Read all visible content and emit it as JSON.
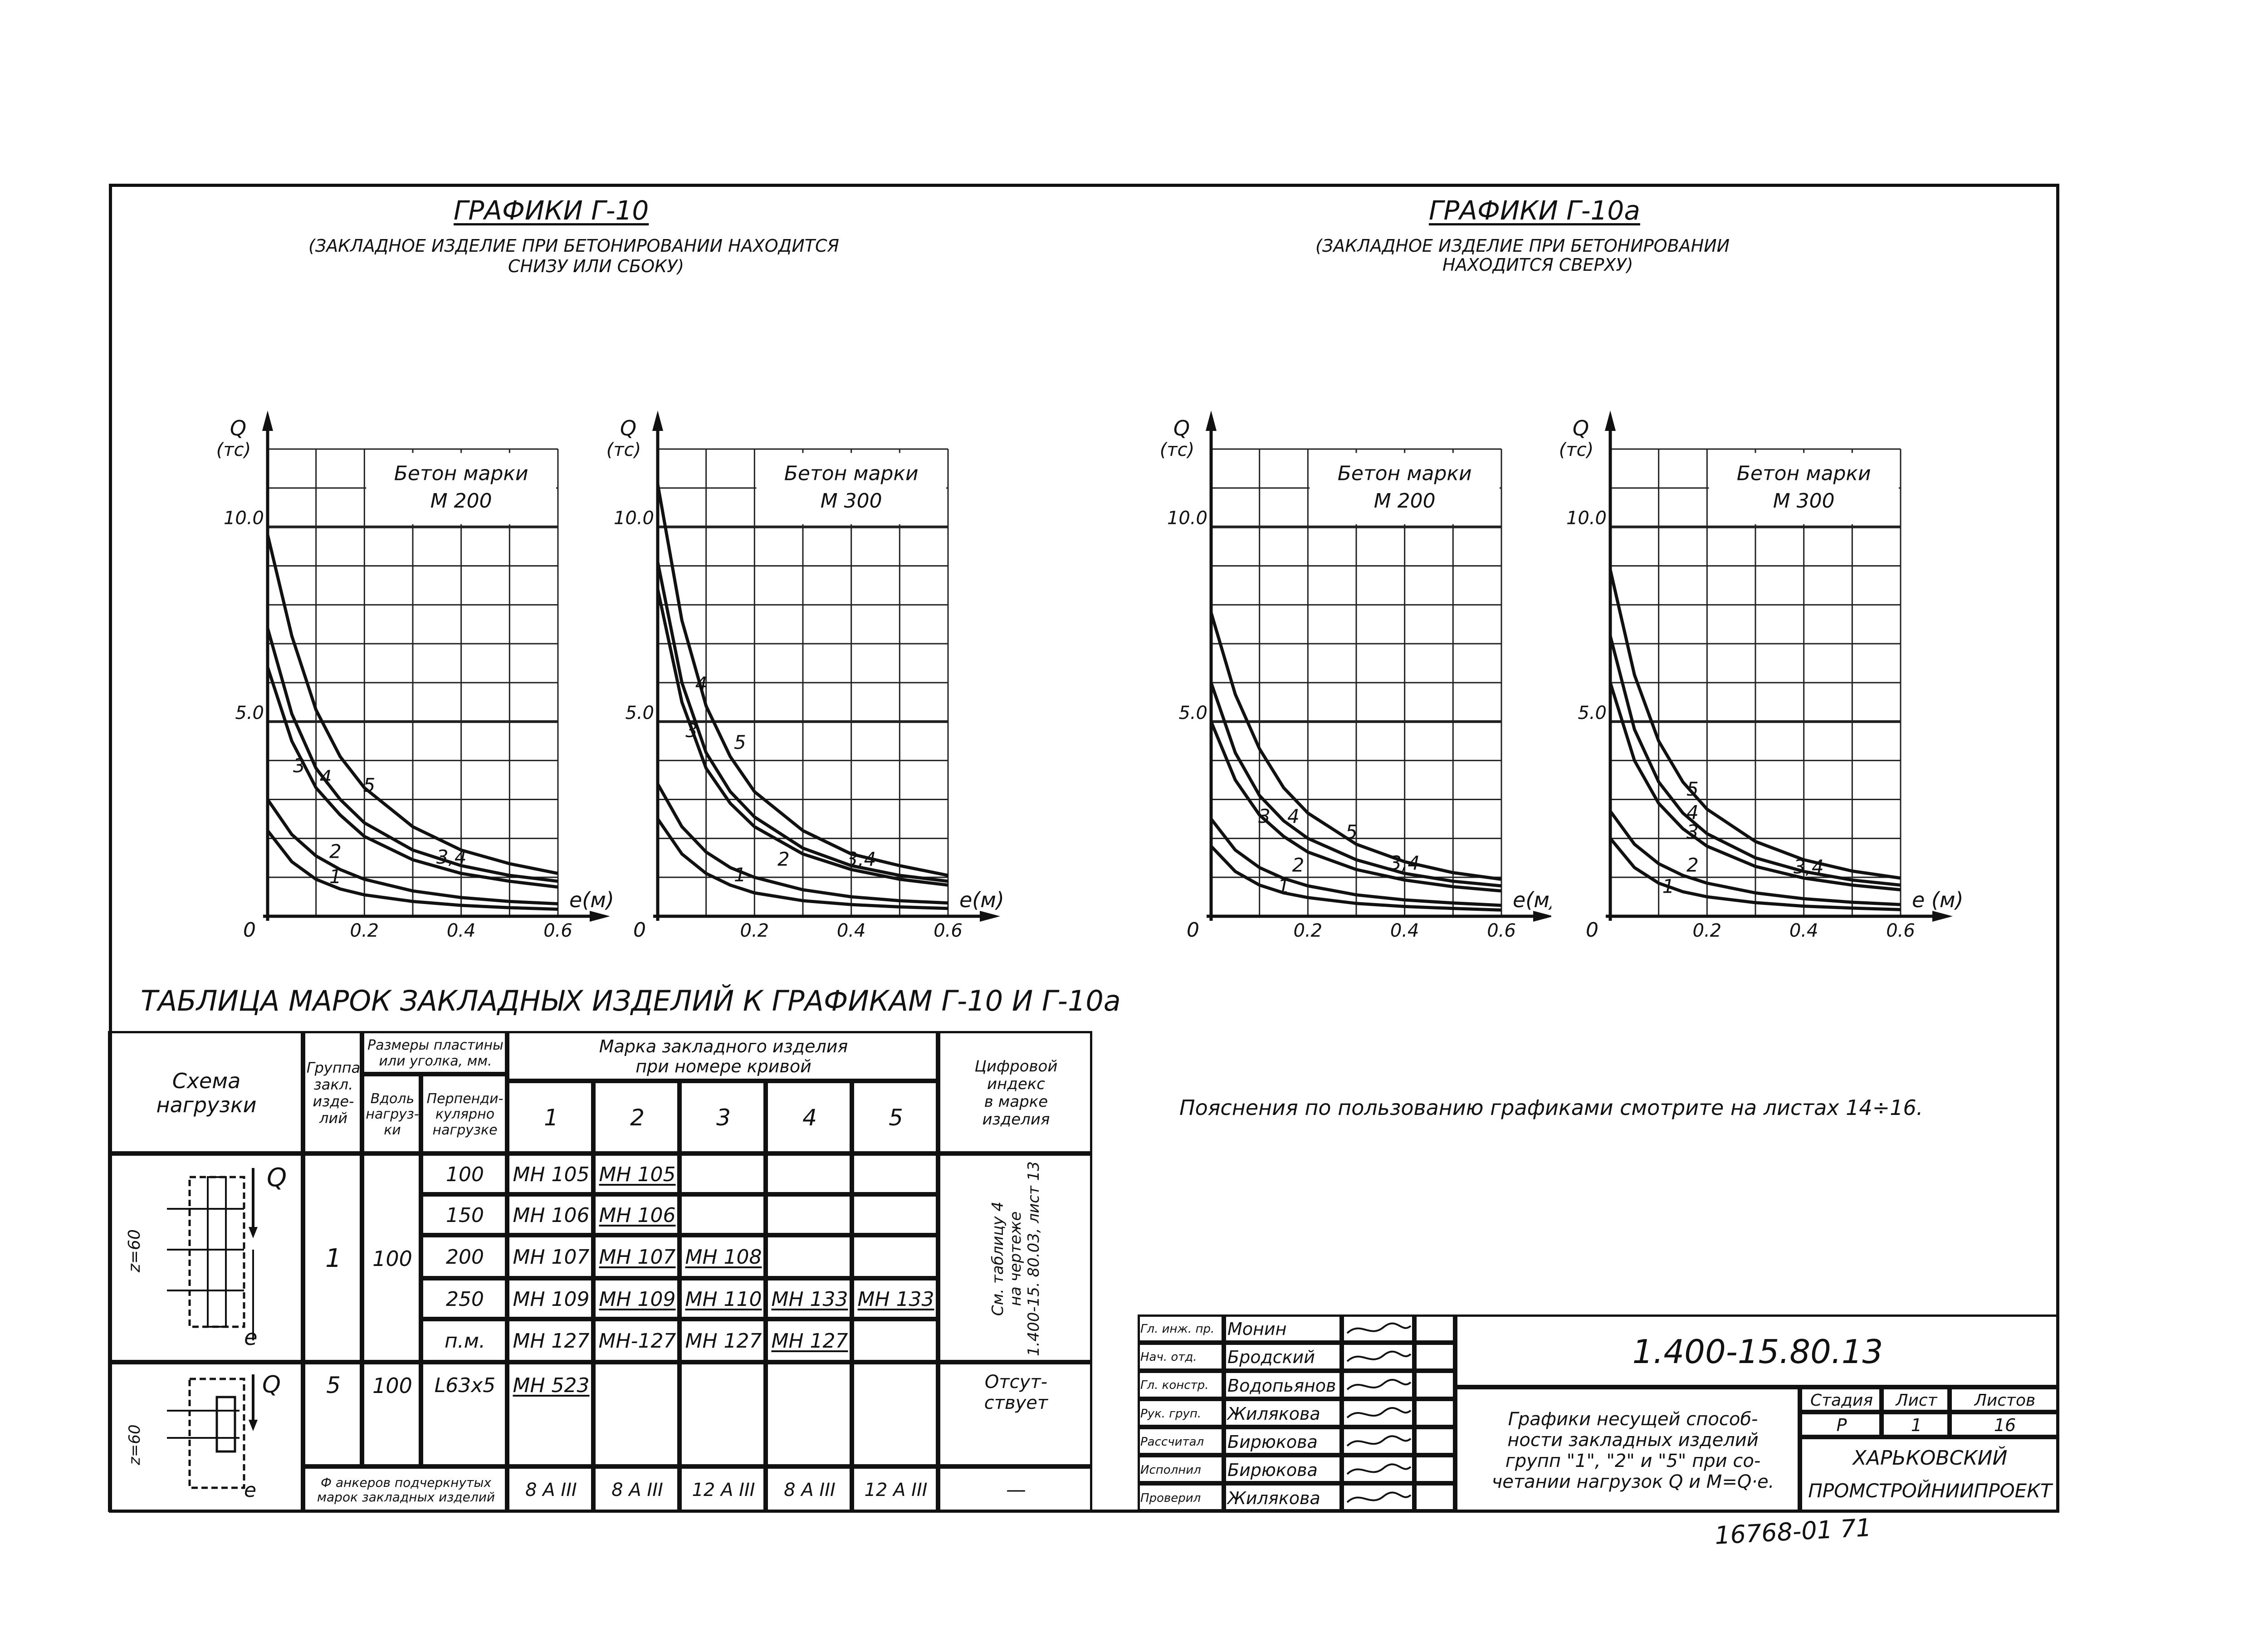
{
  "sheet": {
    "stamp_code": "16768-01 71",
    "drawing_code": "1.400-15.80.13",
    "note": "Пояснения по пользованию графиками смотрите на листах 14÷16."
  },
  "groups": [
    {
      "title": "ГРАФИКИ Г-10",
      "subtitle_1": "(ЗАКЛАДНОЕ ИЗДЕЛИЕ ПРИ БЕТОНИРОВАНИИ НАХОДИТСЯ",
      "subtitle_2": "СНИЗУ ИЛИ СБОКУ)"
    },
    {
      "title": "ГРАФИКИ Г-10а",
      "subtitle_1": "(ЗАКЛАДНОЕ ИЗДЕЛИЕ ПРИ БЕТОНИРОВАНИИ",
      "subtitle_2": "НАХОДИТСЯ СВЕРХУ)"
    }
  ],
  "chart_data": [
    {
      "type": "line",
      "ylabel": "Q (тс)",
      "xlabel": "e(м)",
      "legend_1": "Бетон марки",
      "legend_2": "М 200",
      "origin_label": "0",
      "x_ticks": [
        "0.2",
        "0.4",
        "0.6"
      ],
      "y_ticks": [
        "5.0",
        "10.0"
      ],
      "xlim": [
        0,
        0.6
      ],
      "ylim": [
        0,
        12
      ],
      "grid": true,
      "series": [
        {
          "name": "1",
          "x": [
            0,
            0.05,
            0.1,
            0.15,
            0.2,
            0.3,
            0.4,
            0.5,
            0.6
          ],
          "y": [
            2.2,
            1.4,
            0.95,
            0.7,
            0.55,
            0.38,
            0.28,
            0.22,
            0.18
          ]
        },
        {
          "name": "2",
          "x": [
            0,
            0.05,
            0.1,
            0.15,
            0.2,
            0.3,
            0.4,
            0.5,
            0.6
          ],
          "y": [
            3.0,
            2.1,
            1.55,
            1.2,
            0.95,
            0.65,
            0.48,
            0.38,
            0.32
          ]
        },
        {
          "name": "3",
          "x": [
            0,
            0.05,
            0.1,
            0.15,
            0.2,
            0.3,
            0.4,
            0.5,
            0.6
          ],
          "y": [
            6.4,
            4.5,
            3.3,
            2.6,
            2.05,
            1.45,
            1.1,
            0.9,
            0.75
          ]
        },
        {
          "name": "4",
          "x": [
            0,
            0.05,
            0.1,
            0.15,
            0.2,
            0.3,
            0.4,
            0.5,
            0.6
          ],
          "y": [
            7.4,
            5.2,
            3.8,
            3.0,
            2.4,
            1.7,
            1.3,
            1.05,
            0.9
          ]
        },
        {
          "name": "5",
          "x": [
            0,
            0.05,
            0.1,
            0.15,
            0.2,
            0.3,
            0.4,
            0.5,
            0.6
          ],
          "y": [
            9.8,
            7.2,
            5.3,
            4.1,
            3.3,
            2.3,
            1.7,
            1.35,
            1.1
          ]
        }
      ],
      "curve_labels": [
        {
          "text": "1",
          "x": 0.14,
          "y": 0.85
        },
        {
          "text": "2",
          "x": 0.14,
          "y": 1.5
        },
        {
          "text": "3",
          "x": 0.065,
          "y": 3.7
        },
        {
          "text": "4",
          "x": 0.12,
          "y": 3.4
        },
        {
          "text": "5",
          "x": 0.21,
          "y": 3.2
        },
        {
          "text": "3,4",
          "x": 0.38,
          "y": 1.35
        }
      ]
    },
    {
      "type": "line",
      "ylabel": "Q (тс)",
      "xlabel": "e(м)",
      "legend_1": "Бетон марки",
      "legend_2": "М 300",
      "origin_label": "0",
      "x_ticks": [
        "0.2",
        "0.4",
        "0.6"
      ],
      "y_ticks": [
        "5.0",
        "10.0"
      ],
      "xlim": [
        0,
        0.6
      ],
      "ylim": [
        0,
        12
      ],
      "grid": true,
      "series": [
        {
          "name": "1",
          "x": [
            0,
            0.05,
            0.1,
            0.15,
            0.2,
            0.3,
            0.4,
            0.5,
            0.6
          ],
          "y": [
            2.5,
            1.6,
            1.1,
            0.8,
            0.6,
            0.4,
            0.3,
            0.24,
            0.2
          ]
        },
        {
          "name": "2",
          "x": [
            0,
            0.05,
            0.1,
            0.15,
            0.2,
            0.3,
            0.4,
            0.5,
            0.6
          ],
          "y": [
            3.4,
            2.3,
            1.65,
            1.25,
            1.0,
            0.68,
            0.5,
            0.4,
            0.34
          ]
        },
        {
          "name": "3",
          "x": [
            0,
            0.05,
            0.1,
            0.15,
            0.2,
            0.3,
            0.4,
            0.5,
            0.6
          ],
          "y": [
            8.4,
            5.5,
            3.8,
            2.9,
            2.3,
            1.6,
            1.2,
            0.95,
            0.8
          ]
        },
        {
          "name": "4",
          "x": [
            0,
            0.05,
            0.1,
            0.15,
            0.2,
            0.3,
            0.4,
            0.5,
            0.6
          ],
          "y": [
            9.1,
            6.0,
            4.2,
            3.2,
            2.55,
            1.75,
            1.3,
            1.05,
            0.9
          ]
        },
        {
          "name": "5",
          "x": [
            0,
            0.05,
            0.1,
            0.15,
            0.2,
            0.3,
            0.4,
            0.5,
            0.6
          ],
          "y": [
            11.1,
            7.6,
            5.4,
            4.1,
            3.2,
            2.2,
            1.6,
            1.3,
            1.05
          ]
        }
      ],
      "curve_labels": [
        {
          "text": "1",
          "x": 0.17,
          "y": 0.9
        },
        {
          "text": "2",
          "x": 0.26,
          "y": 1.3
        },
        {
          "text": "3",
          "x": 0.07,
          "y": 4.6
        },
        {
          "text": "4",
          "x": 0.09,
          "y": 5.8
        },
        {
          "text": "5",
          "x": 0.17,
          "y": 4.3
        },
        {
          "text": "3,4",
          "x": 0.42,
          "y": 1.3
        }
      ]
    },
    {
      "type": "line",
      "ylabel": "Q (тс)",
      "xlabel": "e(м)",
      "legend_1": "Бетон марки",
      "legend_2": "М 200",
      "origin_label": "0",
      "x_ticks": [
        "0.2",
        "0.4",
        "0.6"
      ],
      "y_ticks": [
        "5.0",
        "10.0"
      ],
      "xlim": [
        0,
        0.6
      ],
      "ylim": [
        0,
        12
      ],
      "grid": true,
      "series": [
        {
          "name": "1",
          "x": [
            0,
            0.05,
            0.1,
            0.15,
            0.2,
            0.3,
            0.4,
            0.5,
            0.6
          ],
          "y": [
            1.8,
            1.15,
            0.8,
            0.6,
            0.48,
            0.33,
            0.25,
            0.2,
            0.16
          ]
        },
        {
          "name": "2",
          "x": [
            0,
            0.05,
            0.1,
            0.15,
            0.2,
            0.3,
            0.4,
            0.5,
            0.6
          ],
          "y": [
            2.5,
            1.7,
            1.25,
            0.97,
            0.78,
            0.55,
            0.42,
            0.34,
            0.28
          ]
        },
        {
          "name": "3",
          "x": [
            0,
            0.05,
            0.1,
            0.15,
            0.2,
            0.3,
            0.4,
            0.5,
            0.6
          ],
          "y": [
            5.0,
            3.5,
            2.6,
            2.05,
            1.65,
            1.2,
            0.93,
            0.76,
            0.65
          ]
        },
        {
          "name": "4",
          "x": [
            0,
            0.05,
            0.1,
            0.15,
            0.2,
            0.3,
            0.4,
            0.5,
            0.6
          ],
          "y": [
            6.0,
            4.2,
            3.1,
            2.45,
            2.0,
            1.45,
            1.1,
            0.9,
            0.78
          ]
        },
        {
          "name": "5",
          "x": [
            0,
            0.05,
            0.1,
            0.15,
            0.2,
            0.3,
            0.4,
            0.5,
            0.6
          ],
          "y": [
            7.8,
            5.7,
            4.3,
            3.3,
            2.65,
            1.85,
            1.4,
            1.12,
            0.95
          ]
        }
      ],
      "curve_labels": [
        {
          "text": "1",
          "x": 0.15,
          "y": 0.6
        },
        {
          "text": "2",
          "x": 0.18,
          "y": 1.15
        },
        {
          "text": "3",
          "x": 0.11,
          "y": 2.4
        },
        {
          "text": "4",
          "x": 0.17,
          "y": 2.4
        },
        {
          "text": "5",
          "x": 0.29,
          "y": 2.0
        },
        {
          "text": "3,4",
          "x": 0.4,
          "y": 1.2
        }
      ]
    },
    {
      "type": "line",
      "ylabel": "Q (тс)",
      "xlabel": "e (м)",
      "legend_1": "Бетон марки",
      "legend_2": "М 300",
      "origin_label": "0",
      "x_ticks": [
        "0.2",
        "0.4",
        "0.6"
      ],
      "y_ticks": [
        "5.0",
        "10.0"
      ],
      "xlim": [
        0,
        0.6
      ],
      "ylim": [
        0,
        12
      ],
      "grid": true,
      "series": [
        {
          "name": "1",
          "x": [
            0,
            0.05,
            0.1,
            0.15,
            0.2,
            0.3,
            0.4,
            0.5,
            0.6
          ],
          "y": [
            2.0,
            1.25,
            0.85,
            0.63,
            0.5,
            0.35,
            0.26,
            0.21,
            0.17
          ]
        },
        {
          "name": "2",
          "x": [
            0,
            0.05,
            0.1,
            0.15,
            0.2,
            0.3,
            0.4,
            0.5,
            0.6
          ],
          "y": [
            2.7,
            1.85,
            1.35,
            1.05,
            0.85,
            0.6,
            0.45,
            0.36,
            0.3
          ]
        },
        {
          "name": "3",
          "x": [
            0,
            0.05,
            0.1,
            0.15,
            0.2,
            0.3,
            0.4,
            0.5,
            0.6
          ],
          "y": [
            6.0,
            4.0,
            2.9,
            2.25,
            1.8,
            1.28,
            0.98,
            0.8,
            0.68
          ]
        },
        {
          "name": "4",
          "x": [
            0,
            0.05,
            0.1,
            0.15,
            0.2,
            0.3,
            0.4,
            0.5,
            0.6
          ],
          "y": [
            7.2,
            4.8,
            3.45,
            2.65,
            2.12,
            1.5,
            1.15,
            0.93,
            0.8
          ]
        },
        {
          "name": "5",
          "x": [
            0,
            0.05,
            0.1,
            0.15,
            0.2,
            0.3,
            0.4,
            0.5,
            0.6
          ],
          "y": [
            8.9,
            6.2,
            4.5,
            3.45,
            2.75,
            1.92,
            1.45,
            1.16,
            0.98
          ]
        }
      ],
      "curve_labels": [
        {
          "text": "1",
          "x": 0.12,
          "y": 0.6
        },
        {
          "text": "2",
          "x": 0.17,
          "y": 1.15
        },
        {
          "text": "3",
          "x": 0.17,
          "y": 2.0
        },
        {
          "text": "4",
          "x": 0.17,
          "y": 2.5
        },
        {
          "text": "5",
          "x": 0.17,
          "y": 3.1
        },
        {
          "text": "3,4",
          "x": 0.41,
          "y": 1.1
        }
      ]
    }
  ],
  "table": {
    "title": "ТАБЛИЦА МАРОК ЗАКЛАДНЫХ ИЗДЕЛИЙ К ГРАФИКАМ Г-10 И Г-10а",
    "headers": {
      "scheme": "Схема\nнагрузки",
      "group": "Группа\nзакл.\nизде-\nлий",
      "sizes": "Размеры пластины\nили уголка, мм.",
      "along": "Вдоль\nнагруз-\nки",
      "perp": "Перпенди-\nкулярно\nнагрузке",
      "marks": "Марка закладного изделия\nпри номере кривой",
      "curve_numbers": [
        "1",
        "2",
        "3",
        "4",
        "5"
      ],
      "index": "Цифровой\nиндекс\nв марке\nизделия"
    },
    "scheme_q": "Q",
    "scheme_e": "e",
    "scheme_z": "z=60",
    "group1": {
      "group": "1",
      "along": "100",
      "rows": [
        {
          "perp": "100",
          "marks": [
            "МН 105",
            "МН 105",
            "",
            "",
            ""
          ],
          "underline": [
            false,
            true,
            false,
            false,
            false
          ]
        },
        {
          "perp": "150",
          "marks": [
            "МН 106",
            "МН 106",
            "",
            "",
            ""
          ],
          "underline": [
            false,
            true,
            false,
            false,
            false
          ]
        },
        {
          "perp": "200",
          "marks": [
            "МН 107",
            "МН 107",
            "МН 108",
            "",
            ""
          ],
          "underline": [
            false,
            true,
            true,
            false,
            false
          ]
        },
        {
          "perp": "250",
          "marks": [
            "МН 109",
            "МН 109",
            "МН 110",
            "МН 133",
            "МН 133"
          ],
          "underline": [
            false,
            true,
            true,
            true,
            true
          ]
        },
        {
          "perp": "п.м.",
          "marks": [
            "МН 127",
            "МН-127",
            "МН 127",
            "МН 127",
            ""
          ],
          "underline": [
            false,
            false,
            false,
            true,
            false
          ]
        }
      ],
      "index": "См. таблицу 4\nна чертеже\n1.400-15. 80.03, лист 13"
    },
    "group5": {
      "group": "5",
      "along": "100",
      "perp": "L63x5",
      "marks": [
        "МН 523",
        "",
        "",
        "",
        ""
      ],
      "index": "Отсут-\nствует"
    },
    "anchors": {
      "label": "Ф анкеров подчеркнутых\nмарок закладных изделий",
      "values": [
        "8 А III",
        "8 А III",
        "12 А III",
        "8 А III",
        "12 А III"
      ],
      "index": "—"
    }
  },
  "title_block": {
    "roles": [
      {
        "role": "Гл. инж. пр.",
        "name": "Монин"
      },
      {
        "role": "Нач. отд.",
        "name": "Бродский"
      },
      {
        "role": "Гл. констр.",
        "name": "Водопьянов"
      },
      {
        "role": "Рук. груп.",
        "name": "Жилякова"
      },
      {
        "role": "Рассчитал",
        "name": "Бирюкова"
      },
      {
        "role": "Исполнил",
        "name": "Бирюкова"
      },
      {
        "role": "Проверил",
        "name": "Жилякова"
      }
    ],
    "description": "Графики несущей способ-\nности закладных изделий\nгрупп \"1\", \"2\" и \"5\" при со-\nчетании нагрузок Q и М=Q·е.",
    "stage_label": "Стадия",
    "sheet_label": "Лист",
    "sheets_label": "Листов",
    "stage": "Р",
    "sheet": "1",
    "sheets": "16",
    "org_1": "ХАРЬКОВСКИЙ",
    "org_2": "ПРОМСТРОЙНИИПРОЕКТ"
  }
}
